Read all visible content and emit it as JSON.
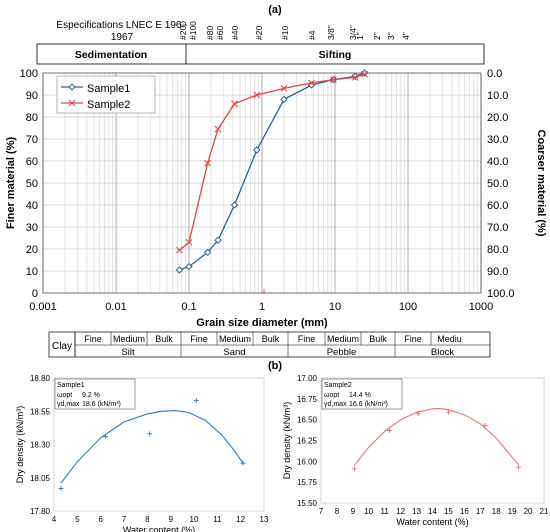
{
  "panel_a_label": "(a)",
  "panel_b_label": "(b)",
  "spec_text": "Especifications LNEC E 196 - 1967",
  "header": {
    "sedimentation": "Sedimentation",
    "sifting": "Sifting"
  },
  "sieves": [
    "#200",
    "#100",
    "#80",
    "#60",
    "#40",
    "#20",
    "#10",
    "#4",
    "3/8\"",
    "3/4\"",
    "1\"",
    "2\"",
    "3\"",
    "4\""
  ],
  "classification": {
    "clay": "Clay",
    "sub": [
      "Fine",
      "Medium",
      "Bulk",
      "Fine",
      "Medium",
      "Bulk",
      "Fine",
      "Medium",
      "Bulk",
      "Fine",
      "Mediu"
    ],
    "groups": [
      "Silt",
      "Sand",
      "Pebble",
      "Block"
    ]
  },
  "chart_data": [
    {
      "type": "line",
      "xlabel": "Grain size diameter (mm)",
      "ylabel": "Finer material (%)",
      "y2label": "Coarser material (%)",
      "xscale": "log",
      "xlim": [
        0.001,
        1000
      ],
      "ylim": [
        0,
        100
      ],
      "y2lim": [
        100,
        0
      ],
      "xticks": [
        "0.001",
        "0.01",
        "0.1",
        "1",
        "10",
        "100",
        "1000"
      ],
      "yticks": [
        "0",
        "10",
        "20",
        "30",
        "40",
        "50",
        "60",
        "70",
        "80",
        "90",
        "100"
      ],
      "y2ticks": [
        "100.0",
        "90.0",
        "80.0",
        "70.0",
        "60.0",
        "50.0",
        "40.0",
        "30.0",
        "20.0",
        "10.0",
        "0.0"
      ],
      "grid": true,
      "legend_position": "top-left",
      "series": [
        {
          "name": "Sample1",
          "color": "#2e5f98",
          "marker": "diamond",
          "x": [
            0.074,
            0.1,
            0.18,
            0.25,
            0.42,
            0.85,
            2.0,
            4.76,
            9.52,
            19.0,
            25.4
          ],
          "y": [
            10.5,
            12.0,
            18.5,
            24.0,
            40.0,
            65.0,
            88.0,
            94.5,
            97.0,
            98.5,
            100.0
          ]
        },
        {
          "name": "Sample2",
          "color": "#e14a4a",
          "marker": "x",
          "x": [
            0.074,
            0.1,
            0.18,
            0.25,
            0.42,
            0.85,
            2.0,
            4.76,
            9.52,
            19.0,
            25.4
          ],
          "y": [
            19.5,
            23.0,
            59.0,
            74.5,
            86.0,
            90.0,
            93.0,
            95.5,
            97.0,
            98.0,
            99.5
          ]
        }
      ]
    },
    {
      "type": "scatter",
      "xlabel": "Water content (%)",
      "ylabel": "Dry density (kN/m³)",
      "xlim": [
        4,
        13
      ],
      "ylim": [
        17.8,
        18.8
      ],
      "xticks": [
        "4",
        "5",
        "6",
        "7",
        "8",
        "9",
        "10",
        "11",
        "12",
        "13"
      ],
      "yticks": [
        "17.80",
        "18.05",
        "18.30",
        "18.55",
        "18.80"
      ],
      "info": {
        "name": "Sample1",
        "w_label": "ωopt",
        "w_value": "9.2 %",
        "g_label": "γd,max",
        "g_value": "18.6 (kN/m³)"
      },
      "points": {
        "x": [
          4.3,
          6.2,
          8.1,
          10.1,
          12.1
        ],
        "y": [
          17.97,
          18.36,
          18.38,
          18.63,
          18.16
        ]
      },
      "fit": {
        "x": [
          4.3,
          5.0,
          6.0,
          7.0,
          8.0,
          8.6,
          9.2,
          9.8,
          10.5,
          11.2,
          11.7,
          12.1
        ],
        "y": [
          18.01,
          18.17,
          18.35,
          18.47,
          18.53,
          18.55,
          18.555,
          18.54,
          18.48,
          18.37,
          18.26,
          18.16
        ]
      },
      "color": "#2e7bbf"
    },
    {
      "type": "scatter",
      "xlabel": "Water content (%)",
      "ylabel": "Dry density (kN/m³)",
      "xlim": [
        7,
        21
      ],
      "ylim": [
        15.5,
        17.0
      ],
      "xticks": [
        "7",
        "8",
        "9",
        "10",
        "11",
        "12",
        "13",
        "14",
        "15",
        "16",
        "17",
        "18",
        "19",
        "20",
        "21"
      ],
      "yticks": [
        "15.50",
        "15.75",
        "16.00",
        "16.25",
        "16.50",
        "16.75",
        "17.00"
      ],
      "info": {
        "name": "Sample2",
        "w_label": "ωopt",
        "w_value": "14.4 %",
        "g_label": "γd,max",
        "g_value": "16.6 (kN/m³)"
      },
      "points": {
        "x": [
          9.1,
          11.3,
          13.1,
          15.0,
          17.3,
          19.4
        ],
        "y": [
          15.91,
          16.37,
          16.57,
          16.59,
          16.43,
          15.93
        ]
      },
      "fit": {
        "x": [
          9.1,
          10.0,
          11.0,
          12.0,
          13.0,
          14.0,
          14.4,
          15.0,
          16.0,
          17.0,
          18.0,
          19.0,
          19.4
        ],
        "y": [
          15.95,
          16.17,
          16.36,
          16.5,
          16.59,
          16.63,
          16.635,
          16.62,
          16.56,
          16.45,
          16.28,
          16.05,
          15.96
        ]
      },
      "color": "#e8767a"
    }
  ]
}
